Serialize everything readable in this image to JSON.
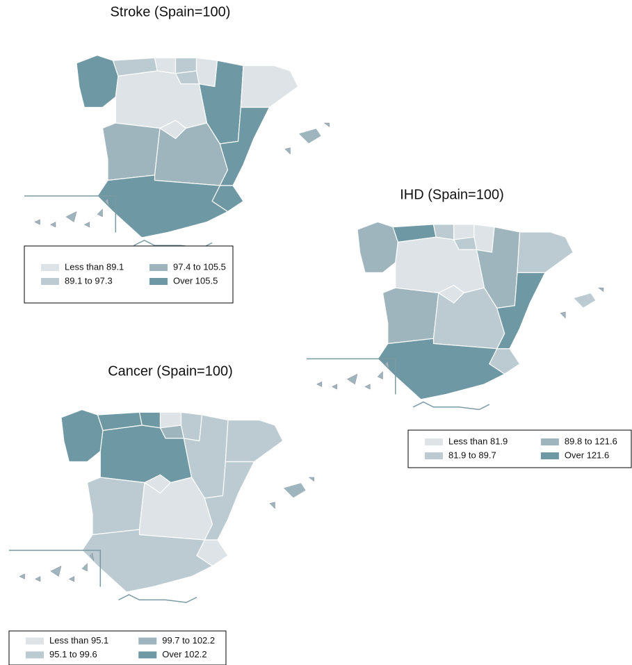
{
  "maps": [
    {
      "title": "Stroke (Spain=100)",
      "legend": [
        {
          "label": "Less than 89.1",
          "color": "#dde3e6"
        },
        {
          "label": "89.1 to 97.3",
          "color": "#bccbd1"
        },
        {
          "label": "97.4 to 105.5",
          "color": "#9fb5bd"
        },
        {
          "label": "Over 105.5",
          "color": "#6e98a3"
        }
      ]
    },
    {
      "title": "IHD (Spain=100)",
      "legend": [
        {
          "label": "Less than 81.9",
          "color": "#dde3e6"
        },
        {
          "label": "81.9 to 89.7",
          "color": "#bccbd1"
        },
        {
          "label": "89.8 to 121.6",
          "color": "#9fb5bd"
        },
        {
          "label": "Over 121.6",
          "color": "#6e98a3"
        }
      ]
    },
    {
      "title": "Cancer (Spain=100)",
      "legend": [
        {
          "label": "Less than 95.1",
          "color": "#dde3e6"
        },
        {
          "label": "95.1 to 99.6",
          "color": "#bccbd1"
        },
        {
          "label": "99.7 to 102.2",
          "color": "#9fb5bd"
        },
        {
          "label": "Over 102.2",
          "color": "#6e98a3"
        }
      ]
    }
  ]
}
